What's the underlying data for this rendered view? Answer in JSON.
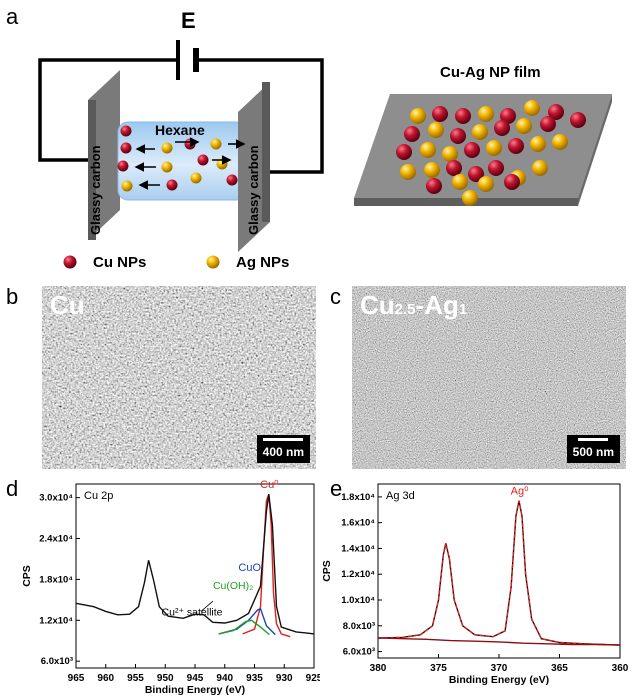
{
  "panel_a": {
    "letter": "a",
    "field_label": "E",
    "solvent_label": "Hexane",
    "electrode_label": "Glassy carbon",
    "film_title": "Cu-Ag NP film",
    "legend": [
      {
        "label": "Cu NPs",
        "color": "#b3122a"
      },
      {
        "label": "Ag NPs",
        "color": "#f2b400"
      }
    ]
  },
  "panel_b": {
    "letter": "b",
    "title": "Cu",
    "scale_bar": "400 nm"
  },
  "panel_c": {
    "letter": "c",
    "title_main": "Cu",
    "title_sub1": "2.5",
    "title_mid": "-Ag",
    "title_sub2": "1",
    "scale_bar": "500 nm"
  },
  "panel_d": {
    "letter": "d"
  },
  "panel_e": {
    "letter": "e"
  },
  "chart_data": [
    {
      "type": "line",
      "label": "Cu 2p",
      "xlabel": "Binding Energy (eV)",
      "ylabel": "CPS",
      "xlim": [
        965,
        925
      ],
      "ylim": [
        5000,
        32000
      ],
      "xticks": [
        965,
        960,
        955,
        950,
        945,
        940,
        935,
        930,
        925
      ],
      "yticks": [
        6000,
        12000,
        18000,
        24000,
        30000
      ],
      "ytick_labels": [
        "6.0x10³",
        "1.2x10⁴",
        "1.8x10⁴",
        "2.4x10⁴",
        "3.0x10⁴"
      ],
      "annotations": [
        "Cu⁰",
        "CuO",
        "Cu(OH)₂",
        "Cu²⁺ satellite"
      ],
      "series": [
        {
          "name": "Cu⁰",
          "color": "#e0201c",
          "x": [
            937,
            935,
            934,
            933.5,
            933,
            932.6,
            932.2,
            931.8,
            931.3,
            930.5,
            929
          ],
          "y": [
            10000,
            10700,
            14000,
            22000,
            29500,
            30500,
            26000,
            16000,
            11500,
            10000,
            9600
          ]
        },
        {
          "name": "CuO",
          "color": "#2040c0",
          "x": [
            941,
            938,
            936,
            934.5,
            934,
            933,
            931.5
          ],
          "y": [
            10000,
            10700,
            12000,
            13500,
            13700,
            11200,
            9900
          ]
        },
        {
          "name": "Cu(OH)₂",
          "color": "#20a020",
          "x": [
            941,
            938.5,
            936.5,
            935.5,
            934,
            932.5
          ],
          "y": [
            10000,
            10500,
            11800,
            12000,
            11000,
            9900
          ]
        },
        {
          "name": "",
          "color": "#111111",
          "x": [
            965,
            962,
            960,
            958,
            956,
            954.5,
            953.5,
            952.8,
            952,
            951,
            949.5,
            947,
            945,
            943.5,
            942,
            940,
            938,
            936,
            934,
            933,
            932.6,
            932,
            931.3,
            930.5,
            928,
            926,
            925
          ],
          "y": [
            14500,
            14000,
            13300,
            12800,
            12900,
            14000,
            17500,
            20800,
            18000,
            14000,
            12600,
            12300,
            12900,
            12800,
            11700,
            11600,
            12000,
            13000,
            17000,
            28000,
            30500,
            26000,
            14000,
            11000,
            10300,
            10100,
            10000
          ]
        }
      ]
    },
    {
      "type": "line",
      "label": "Ag 3d",
      "xlabel": "Binding Energy (eV)",
      "ylabel": "CPS",
      "xlim": [
        380,
        360
      ],
      "ylim": [
        5500,
        19000
      ],
      "xticks": [
        380,
        375,
        370,
        365,
        360
      ],
      "yticks": [
        6000,
        8000,
        10000,
        12000,
        14000,
        16000,
        18000
      ],
      "ytick_labels": [
        "6.0x10³",
        "8.0x10³",
        "1.0x10⁴",
        "1.2x10⁴",
        "1.4x10⁴",
        "1.6x10⁴",
        "1.8x10⁴"
      ],
      "annotations": [
        "Ag⁰"
      ],
      "series": [
        {
          "name": "",
          "color": "#111111",
          "x": [
            380,
            378,
            376.5,
            375.5,
            375,
            374.6,
            374.4,
            374.1,
            373.7,
            373,
            372,
            370.5,
            369.5,
            369,
            368.6,
            368.35,
            368.1,
            367.8,
            367.3,
            366.5,
            365,
            363,
            360
          ],
          "y": [
            7050,
            7100,
            7300,
            8000,
            10000,
            13500,
            14400,
            13200,
            10000,
            8000,
            7300,
            7150,
            7600,
            11000,
            16500,
            17700,
            16500,
            12000,
            8500,
            7000,
            6700,
            6600,
            6500
          ]
        },
        {
          "name": "Ag⁰",
          "color": "#e0201c",
          "x": [
            380,
            378,
            376.5,
            375.5,
            375,
            374.6,
            374.4,
            374.1,
            373.7,
            373,
            372,
            370.5,
            369.5,
            369,
            368.6,
            368.35,
            368.1,
            367.8,
            367.3,
            366.5,
            365,
            363,
            360
          ],
          "y": [
            7050,
            7100,
            7300,
            8000,
            10000,
            13500,
            14400,
            13200,
            10000,
            8000,
            7300,
            7150,
            7600,
            11000,
            16500,
            17700,
            16500,
            12000,
            8500,
            7000,
            6700,
            6600,
            6500
          ]
        },
        {
          "name": "",
          "color": "#8a1010",
          "x": [
            380,
            376,
            374,
            372,
            370,
            368,
            366,
            364,
            362,
            360
          ],
          "y": [
            7050,
            6950,
            6850,
            6800,
            6750,
            6650,
            6600,
            6550,
            6550,
            6500
          ]
        }
      ]
    }
  ]
}
